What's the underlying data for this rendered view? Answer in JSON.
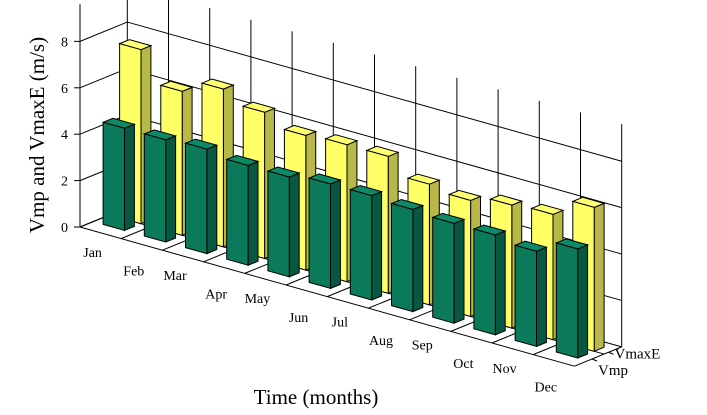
{
  "chart_data": {
    "type": "bar",
    "title": "",
    "xlabel": "Time (months)",
    "ylabel": "Vmp and VmaxE (m/s)",
    "categories": [
      "Jan",
      "Feb",
      "Mar",
      "Apr",
      "May",
      "Jun",
      "Jul",
      "Aug",
      "Sep",
      "Oct",
      "Nov",
      "Dec"
    ],
    "series": [
      {
        "name": "Vmp",
        "color": "#0b7a5a",
        "values": [
          4.4,
          4.4,
          4.5,
          4.3,
          4.3,
          4.5,
          4.5,
          4.4,
          4.3,
          4.3,
          4.1,
          4.7
        ]
      },
      {
        "name": "VmaxE",
        "color": "#ffff66",
        "values": [
          7.5,
          6.2,
          6.8,
          6.3,
          5.8,
          5.9,
          5.9,
          5.2,
          5.0,
          5.3,
          5.4,
          6.2
        ]
      }
    ],
    "ylim": [
      0,
      9
    ],
    "yticks": [
      0,
      2,
      4,
      6,
      8
    ],
    "grid": true,
    "legend": "right-axis"
  }
}
